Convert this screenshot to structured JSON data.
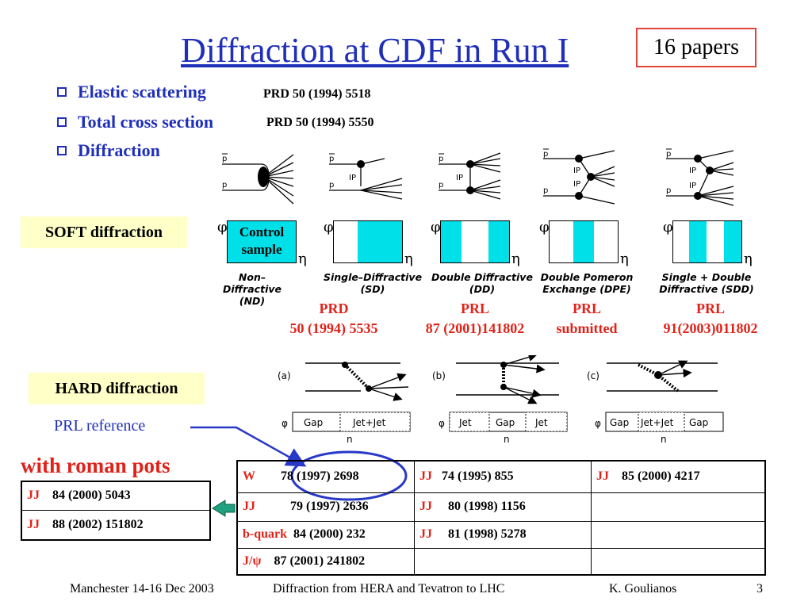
{
  "title": "Diffraction at CDF in Run I",
  "papers_badge": "16 papers",
  "bullets": [
    {
      "label": "Elastic scattering",
      "ref": "PRD 50 (1994) 5518"
    },
    {
      "label": "Total cross section",
      "ref": "PRD 50 (1994) 5550"
    },
    {
      "label": "Diffraction",
      "ref": ""
    }
  ],
  "soft_label": "SOFT diffraction",
  "hard_label": "HARD diffraction",
  "control_sample": "Control sample",
  "diagram_text": {
    "p": "p",
    "pbar": "p",
    "ip": "IP",
    "phi": "φ",
    "eta": "η"
  },
  "soft_processes": [
    {
      "caption": "Non–Diffractive (ND)",
      "ref_line1": "",
      "ref_line2": ""
    },
    {
      "caption": "Single–Diffractive (SD)",
      "ref_line1": "PRD",
      "ref_line2": "50 (1994) 5535"
    },
    {
      "caption": "Double Diffractive (DD)",
      "ref_line1": "PRL",
      "ref_line2": "87 (2001)141802"
    },
    {
      "caption": "Double Pomeron Exchange (DPE)",
      "ref_line1": "PRL",
      "ref_line2": "submitted"
    },
    {
      "caption": "Single + Double Diffractive (SDD)",
      "ref_line1": "PRL",
      "ref_line2": "91(2003)011802"
    }
  ],
  "hard_panels": [
    {
      "tag": "(a)",
      "cells": [
        "Gap",
        "Jet+Jet"
      ]
    },
    {
      "tag": "(b)",
      "cells": [
        "Jet",
        "Gap",
        "Jet"
      ]
    },
    {
      "tag": "(c)",
      "cells": [
        "Gap",
        "Jet+Jet",
        "Gap"
      ]
    }
  ],
  "prl_reference_label": "PRL reference",
  "roman_pots": {
    "title": "with roman pots",
    "rows": [
      {
        "tag": "JJ",
        "ref": "84 (2000) 5043"
      },
      {
        "tag": "JJ",
        "ref": "88 (2002) 151802"
      }
    ]
  },
  "main_table": [
    [
      {
        "tag": "W",
        "ref": "78 (1997) 2698"
      },
      {
        "tag": "JJ",
        "ref": "74 (1995) 855"
      },
      {
        "tag": "JJ",
        "ref": "85 (2000) 4217"
      }
    ],
    [
      {
        "tag": "JJ",
        "ref": "79 (1997) 2636"
      },
      {
        "tag": "JJ",
        "ref": "80 (1998) 1156"
      },
      {
        "tag": "",
        "ref": ""
      }
    ],
    [
      {
        "tag": "b-quark",
        "ref": "84 (2000) 232"
      },
      {
        "tag": "JJ",
        "ref": "81 (1998) 5278"
      },
      {
        "tag": "",
        "ref": ""
      }
    ],
    [
      {
        "tag": "J/ψ",
        "ref": "87 (2001) 241802"
      },
      {
        "tag": "",
        "ref": ""
      },
      {
        "tag": "",
        "ref": ""
      }
    ]
  ],
  "footer": {
    "left": "Manchester 14-16 Dec 2003",
    "center": "Diffraction from HERA and Tevatron to LHC",
    "author": "K. Goulianos",
    "page": "3"
  },
  "colors": {
    "title_blue": "#1f2fb8",
    "ref_red": "#e0231a",
    "cyan": "#00e0e8",
    "label_bg": "#ffffc8",
    "badge_border": "#e0443a",
    "arrow_green": "#20a080",
    "circle_blue": "#2838c8"
  }
}
